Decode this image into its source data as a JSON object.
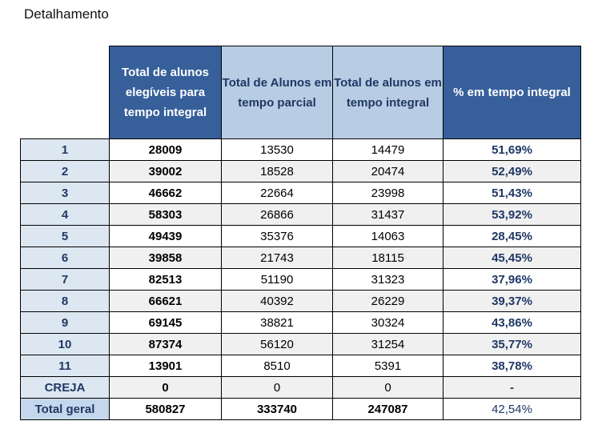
{
  "page_title": "Detalhamento",
  "headers": [
    "",
    "Total de alunos elegíveis para tempo integral",
    "Total de Alunos em tempo parcial",
    "Total de alunos em tempo integral",
    "% em tempo integral"
  ],
  "rows": [
    [
      "1",
      "28009",
      "13530",
      "14479",
      "51,69%"
    ],
    [
      "2",
      "39002",
      "18528",
      "20474",
      "52,49%"
    ],
    [
      "3",
      "46662",
      "22664",
      "23998",
      "51,43%"
    ],
    [
      "4",
      "58303",
      "26866",
      "31437",
      "53,92%"
    ],
    [
      "5",
      "49439",
      "35376",
      "14063",
      "28,45%"
    ],
    [
      "6",
      "39858",
      "21743",
      "18115",
      "45,45%"
    ],
    [
      "7",
      "82513",
      "51190",
      "31323",
      "37,96%"
    ],
    [
      "8",
      "66621",
      "40392",
      "26229",
      "39,37%"
    ],
    [
      "9",
      "69145",
      "38821",
      "30324",
      "43,86%"
    ],
    [
      "10",
      "87374",
      "56120",
      "31254",
      "35,77%"
    ],
    [
      "11",
      "13901",
      "8510",
      "5391",
      "38,78%"
    ],
    [
      "CREJA",
      "0",
      "0",
      "0",
      "-"
    ]
  ],
  "total_row": [
    "Total geral",
    "580827",
    "333740",
    "247087",
    "42,54%"
  ],
  "colors": {
    "header_dark": "#37609a",
    "header_light": "#b8cce4",
    "index_cell": "#dde7f1",
    "text_accent": "#1f3864"
  }
}
